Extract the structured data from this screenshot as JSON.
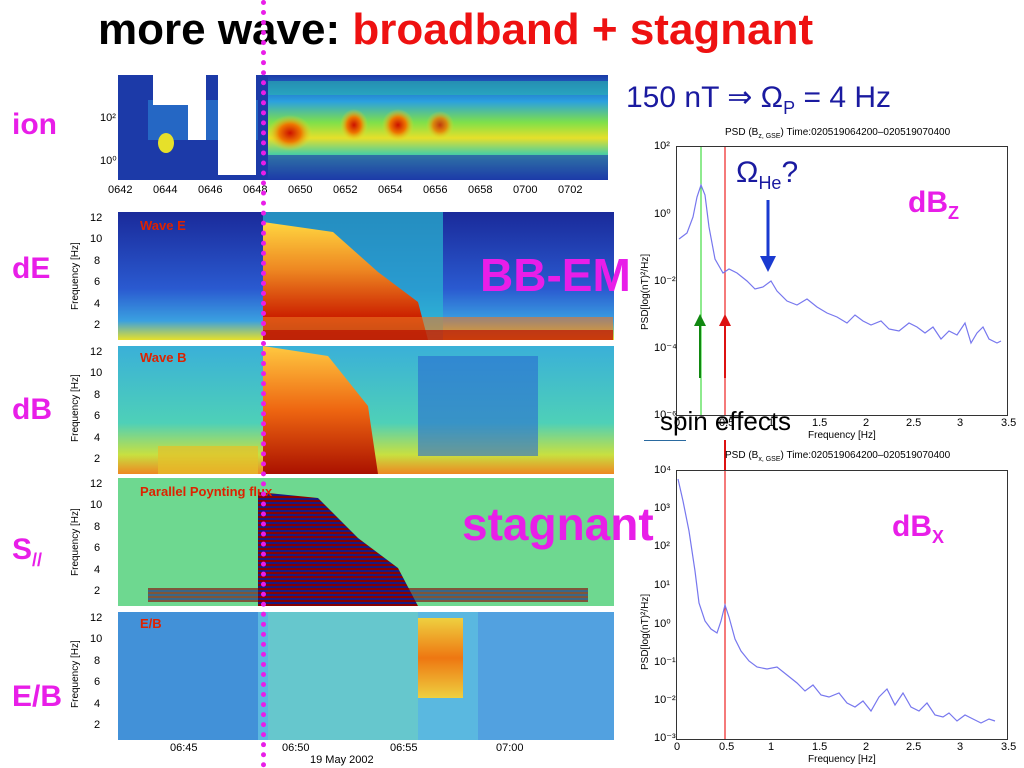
{
  "title": {
    "prefix": "more wave: ",
    "highlight": "broadband + stagnant"
  },
  "row_labels": {
    "ion": "ion",
    "dE": "dE",
    "dB": "dB",
    "S": "S",
    "S_sub": "//",
    "EB": "E/B"
  },
  "ion_panel": {
    "time_ticks": [
      "0642",
      "0644",
      "0646",
      "0648",
      "0650",
      "0652",
      "0654",
      "0656",
      "0658",
      "0700",
      "0702"
    ],
    "y_ticks": [
      "10²",
      "10¹",
      "10⁰"
    ]
  },
  "spectrograms": [
    {
      "label": "Wave E",
      "ylabel": "Frequency [Hz]",
      "yticks": [
        "12",
        "10",
        "8",
        "6",
        "4",
        "2"
      ]
    },
    {
      "label": "Wave B",
      "ylabel": "Frequency [Hz]",
      "yticks": [
        "12",
        "10",
        "8",
        "6",
        "4",
        "2"
      ]
    },
    {
      "label": "Parallel Poynting flux",
      "ylabel": "Frequency [Hz]",
      "yticks": [
        "12",
        "10",
        "8",
        "6",
        "4",
        "2"
      ]
    },
    {
      "label": "E/B",
      "ylabel": "Frequency [Hz]",
      "yticks": [
        "12",
        "10",
        "8",
        "6",
        "4",
        "2"
      ]
    }
  ],
  "bottom_axis": {
    "ticks": [
      "06:45",
      "06:50",
      "06:55",
      "07:00"
    ],
    "date": "19 May 2002"
  },
  "overlays": {
    "bb_em": "BB-EM",
    "stagnant": "stagnant",
    "spin_effects": "spin effects"
  },
  "annotations": {
    "eq_left": "150 nT ",
    "eq_arrow": "⇒",
    "eq_omega": " Ω",
    "eq_sub": "P",
    "eq_right": " = 4 Hz",
    "omega_he": "Ω",
    "omega_he_sub": "He",
    "omega_he_q": "?",
    "dbz": "dB",
    "dbz_sub": "Z",
    "dbx": "dB",
    "dbx_sub": "X"
  },
  "psd_top": {
    "title_pre": "PSD (B",
    "title_sub": "z, GSE",
    "title_post": ") Time:020519064200–020519070400",
    "ylabel": "PSD[log(nT)²/Hz]",
    "xlabel": "Frequency [Hz]",
    "yticks": [
      "10²",
      "10⁰",
      "10⁻²",
      "10⁻⁴",
      "10⁻⁶"
    ],
    "xticks": [
      "0",
      "0.5",
      "1",
      "1.5",
      "2",
      "2.5",
      "3",
      "3.5"
    ]
  },
  "psd_bottom": {
    "title_pre": "PSD (B",
    "title_sub": "x, GSE",
    "title_post": ") Time:020519064200–020519070400",
    "ylabel": "PSD[log(nT)²/Hz]",
    "xlabel": "Frequency [Hz]",
    "yticks": [
      "10⁴",
      "10³",
      "10²",
      "10¹",
      "10⁰",
      "10⁻¹",
      "10⁻²",
      "10⁻³"
    ],
    "xticks": [
      "0",
      "0.5",
      "1",
      "1.5",
      "2",
      "2.5",
      "3",
      "3.5"
    ]
  },
  "colors": {
    "magenta": "#e81ee8",
    "title_red": "#ee1111",
    "annotation_blue": "#1a1aa0",
    "psd_line": "#7777ee"
  }
}
